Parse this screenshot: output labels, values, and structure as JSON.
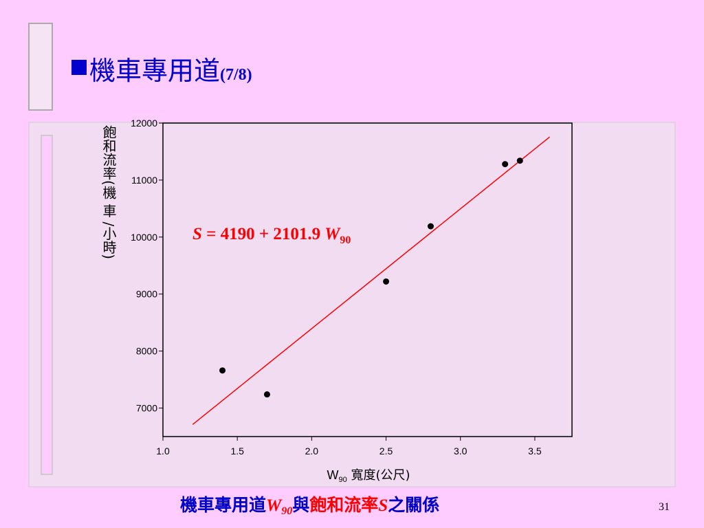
{
  "slide": {
    "title": "機車專用道",
    "title_suffix": "(7/8)",
    "page_number": "31",
    "caption": {
      "lead": "機車專用道",
      "w": "W",
      "w_sub": "90",
      "joiner": "與",
      "mid": "飽和流率",
      "s": "S",
      "tail": "之關係"
    }
  },
  "chart_data": {
    "type": "scatter",
    "x_label": {
      "w": "W",
      "w_sub": "90",
      "rest": " 寬度(公尺)"
    },
    "y_label": "飽和流率(機 車 /小時)",
    "x": [
      1.4,
      1.7,
      2.5,
      2.8,
      3.3,
      3.4
    ],
    "values": [
      7660,
      7240,
      9220,
      10190,
      11280,
      11340
    ],
    "color": "#000000",
    "xlim": [
      1.0,
      3.75
    ],
    "ylim": [
      6500,
      12000
    ],
    "xticks": [
      {
        "value": 1,
        "label": "1.0"
      },
      1.5,
      {
        "value": 2,
        "label": "2.0"
      },
      2.5,
      {
        "value": 3,
        "label": "3.0"
      },
      3.5
    ],
    "yticks": [
      7000,
      8000,
      9000,
      10000,
      11000,
      12000
    ],
    "fit": {
      "intercept": 4190,
      "slope": 2101.9,
      "x": [
        1.2,
        3.6
      ],
      "color": "#ff0000",
      "label": {
        "s": "S",
        "eq": " = ",
        "plus": " + ",
        "w": "W",
        "w_sub": "90"
      }
    }
  }
}
